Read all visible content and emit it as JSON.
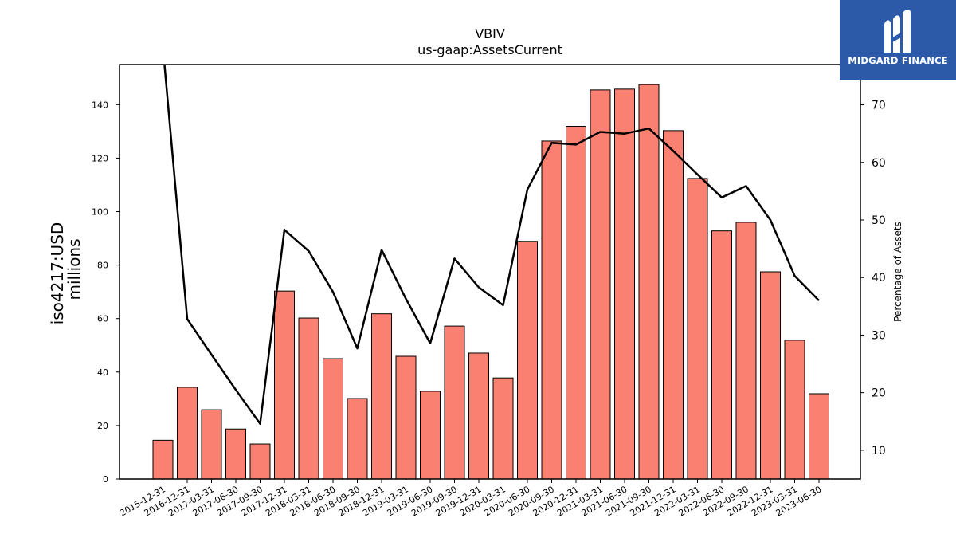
{
  "chart_data": {
    "type": "bar",
    "title": "VBIV",
    "subtitle": "us-gaap:AssetsCurrent",
    "ylabel_line1": "iso4217:USD",
    "ylabel_line2": "millions",
    "y2label": "Percentage of Assets",
    "ylim": [
      0,
      155
    ],
    "y2lim": [
      5,
      77
    ],
    "yticks": [
      0,
      20,
      40,
      60,
      80,
      100,
      120,
      140
    ],
    "y2ticks": [
      10,
      20,
      30,
      40,
      50,
      60,
      70
    ],
    "categories": [
      "2015-12-31",
      "2016-12-31",
      "2017-03-31",
      "2017-06-30",
      "2017-09-30",
      "2017-12-31",
      "2018-03-31",
      "2018-06-30",
      "2018-09-30",
      "2018-12-31",
      "2019-03-31",
      "2019-06-30",
      "2019-09-30",
      "2019-12-31",
      "2020-03-31",
      "2020-06-30",
      "2020-09-30",
      "2020-12-31",
      "2021-03-31",
      "2021-06-30",
      "2021-09-30",
      "2021-12-31",
      "2022-03-31",
      "2022-06-30",
      "2022-09-30",
      "2022-12-31",
      "2023-03-31",
      "2023-06-30"
    ],
    "series": [
      {
        "type": "bar",
        "color": "#fa8072",
        "values": [
          14.5,
          34.3,
          25.9,
          18.7,
          13.1,
          70.3,
          60.2,
          45.0,
          30.1,
          61.8,
          45.9,
          32.8,
          57.2,
          47.1,
          37.8,
          88.9,
          126.4,
          131.9,
          145.5,
          145.8,
          147.5,
          130.3,
          112.4,
          92.8,
          96.0,
          77.5,
          51.9,
          31.9
        ]
      },
      {
        "type": "line",
        "axis": "secondary",
        "color": "#000000",
        "values": [
          80.0,
          32.8,
          26.6,
          20.5,
          14.6,
          48.3,
          44.6,
          37.5,
          27.7,
          44.8,
          36.3,
          28.6,
          43.3,
          38.3,
          35.2,
          55.3,
          63.4,
          63.1,
          65.3,
          65.0,
          65.9,
          62.0,
          57.9,
          53.9,
          55.9,
          50.0,
          40.3,
          36.0
        ]
      }
    ]
  },
  "logo": {
    "text": "MIDGARD FINANCE",
    "bg_color": "#2d5aa8"
  }
}
